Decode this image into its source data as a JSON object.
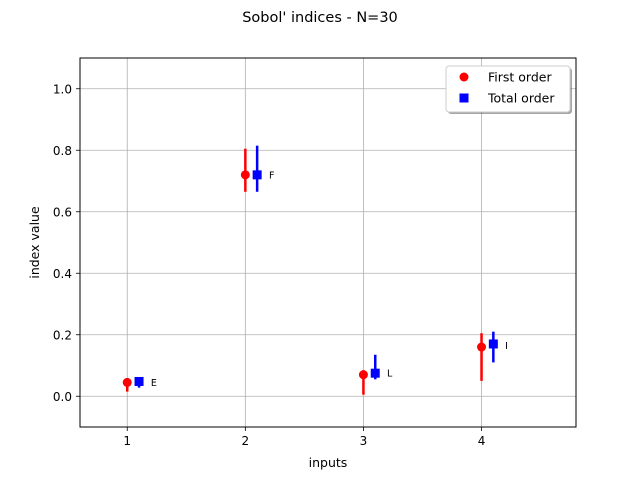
{
  "chart_data": {
    "type": "scatter",
    "title": "Sobol' indices - N=30",
    "xlabel": "inputs",
    "ylabel": "index value",
    "xlim": [
      0.6,
      4.8
    ],
    "ylim": [
      -0.1,
      1.1
    ],
    "x_ticks": [
      "1",
      "2",
      "3",
      "4"
    ],
    "y_ticks": [
      "0.0",
      "0.2",
      "0.4",
      "0.6",
      "0.8",
      "1.0"
    ],
    "grid": true,
    "legend_position": "top-right",
    "series": [
      {
        "name": "First order",
        "color": "#ff0000",
        "marker": "circle",
        "x": [
          1,
          2,
          3,
          4
        ],
        "y": [
          0.045,
          0.72,
          0.07,
          0.16
        ],
        "err_low": [
          0.015,
          0.665,
          0.005,
          0.05
        ],
        "err_high": [
          0.055,
          0.805,
          0.085,
          0.205
        ]
      },
      {
        "name": "Total order",
        "color": "#0000ff",
        "marker": "square",
        "x": [
          1.1,
          2.1,
          3.1,
          4.1
        ],
        "y": [
          0.048,
          0.72,
          0.075,
          0.17
        ],
        "err_low": [
          0.028,
          0.665,
          0.055,
          0.11
        ],
        "err_high": [
          0.06,
          0.815,
          0.135,
          0.21
        ]
      }
    ],
    "annotations": [
      {
        "text": "E",
        "x": 1.2,
        "y": 0.045
      },
      {
        "text": "F",
        "x": 2.2,
        "y": 0.72
      },
      {
        "text": "L",
        "x": 3.2,
        "y": 0.075
      },
      {
        "text": "I",
        "x": 4.2,
        "y": 0.165
      }
    ]
  }
}
